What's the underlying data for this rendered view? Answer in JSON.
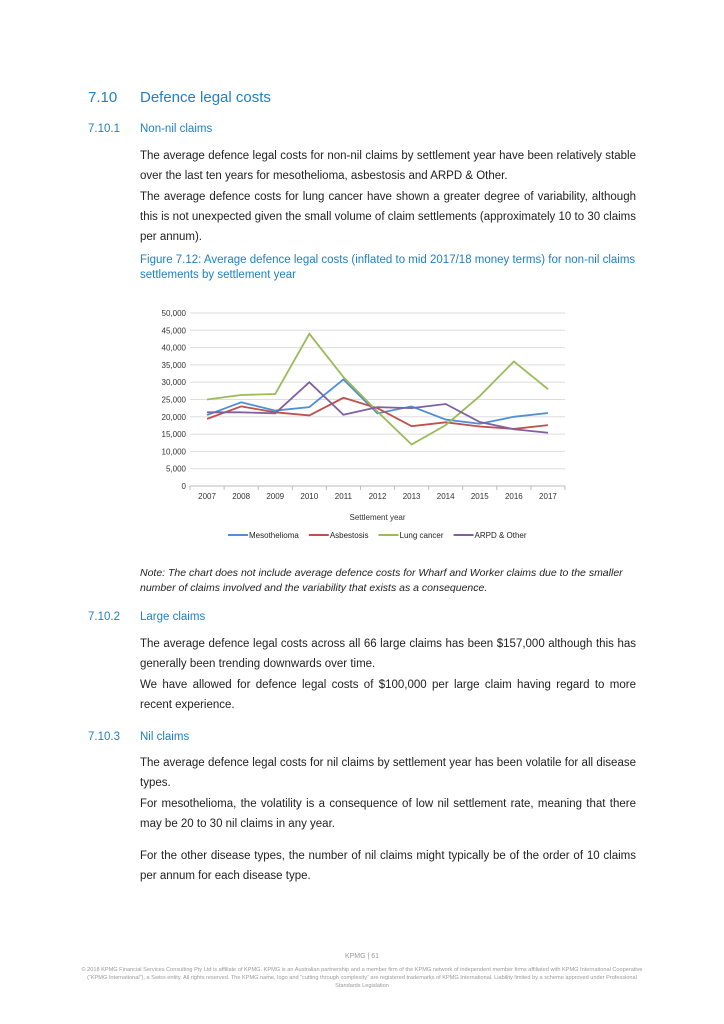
{
  "section": {
    "number": "7.10",
    "title": "Defence legal costs"
  },
  "sub1": {
    "number": "7.10.1",
    "title": "Non-nil claims",
    "paragraphs": [
      "The average defence legal costs for non-nil claims by settlement year have been relatively stable over the last ten years for mesothelioma, asbestosis and ARPD & Other.",
      "The average defence costs for lung cancer have shown a greater degree of variability, although this is not unexpected given the small volume of claim settlements (approximately 10 to 30 claims per annum)."
    ]
  },
  "figure_caption": "Figure 7.12: Average defence legal costs (inflated to mid 2017/18 money terms) for non-nil claims settlements by settlement year",
  "chart_data": {
    "type": "line",
    "title": "",
    "xlabel": "Settlement year",
    "ylabel": "",
    "ylim": [
      0,
      50000
    ],
    "yticks": [
      "0",
      "5,000",
      "10,000",
      "15,000",
      "20,000",
      "25,000",
      "30,000",
      "35,000",
      "40,000",
      "45,000",
      "50,000"
    ],
    "categories": [
      "2007",
      "2008",
      "2009",
      "2010",
      "2011",
      "2012",
      "2013",
      "2014",
      "2015",
      "2016",
      "2017"
    ],
    "grid": true,
    "legend": "bottom",
    "series": [
      {
        "name": "Mesothelioma",
        "color": "#4f8fd6",
        "values": [
          20500,
          24200,
          21800,
          22800,
          30800,
          21000,
          23000,
          19200,
          18000,
          20000,
          21100
        ]
      },
      {
        "name": "Asbestosis",
        "color": "#c0504d",
        "values": [
          19400,
          23000,
          21300,
          20400,
          25500,
          22500,
          17300,
          18400,
          17200,
          16500,
          17600
        ]
      },
      {
        "name": "Lung cancer",
        "color": "#9bbb59",
        "values": [
          25000,
          26300,
          26600,
          44000,
          31500,
          21500,
          12000,
          17600,
          26000,
          36000,
          28000
        ]
      },
      {
        "name": "ARPD & Other",
        "color": "#7f60a0",
        "values": [
          21300,
          21300,
          21000,
          30000,
          20600,
          22800,
          22500,
          23700,
          18500,
          16400,
          15400
        ]
      }
    ]
  },
  "note": "Note: The chart does not include average defence costs for Wharf and Worker claims due to the smaller number of claims involved and the variability that exists as a consequence.",
  "sub2": {
    "number": "7.10.2",
    "title": "Large claims",
    "paragraphs": [
      "The average defence legal costs across all 66 large claims has been $157,000 although this has generally been trending downwards over time.",
      "We have allowed for defence legal costs of $100,000 per large claim having regard to more recent experience."
    ]
  },
  "sub3": {
    "number": "7.10.3",
    "title": "Nil claims",
    "paragraphs": [
      "The average defence legal costs for nil claims by settlement year has been volatile for all disease types.",
      "For mesothelioma, the volatility is a consequence of low nil settlement rate, meaning that there may be 20 to 30 nil claims in any year.",
      "For the other disease types, the number of nil claims might typically be of the order of 10 claims per annum for each disease type."
    ]
  },
  "footer": {
    "page": "KPMG | 61",
    "legal": "© 2018 KPMG Financial Services Consulting Pty Ltd is affiliate of KPMG. KPMG is an Australian partnership and a member firm of the KPMG network of independent member firms affiliated with KPMG International Cooperative (“KPMG International”), a Swiss entity. All rights reserved. The KPMG name, logo and “cutting through complexity” are registered trademarks of KPMG International. Liability limited by a scheme approved under Professional Standards Legislation"
  }
}
